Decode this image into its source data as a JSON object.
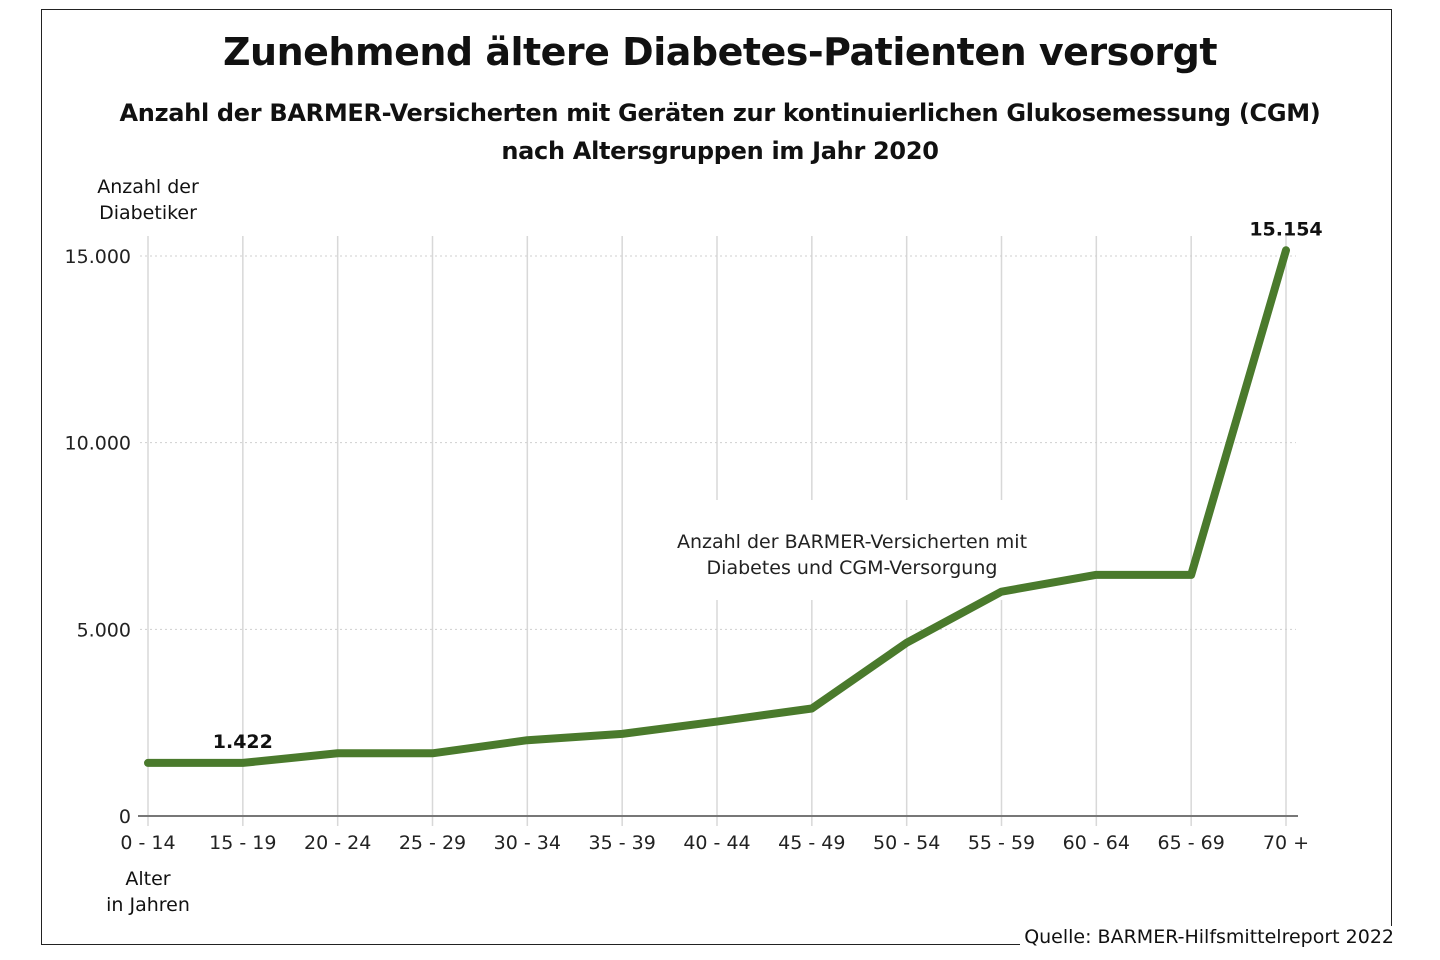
{
  "chart_data": {
    "type": "line",
    "title": "Zunehmend ältere Diabetes-Patienten versorgt",
    "subtitle_lines": [
      "Anzahl der BARMER-Versicherten mit Geräten zur kontinuierlichen Glukosemessung (CGM)",
      "nach Altersgruppen im Jahr 2020"
    ],
    "ylabel_lines": [
      "Anzahl der",
      "Diabetiker"
    ],
    "xlabel_lines": [
      "Alter",
      "in Jahren"
    ],
    "categories": [
      "0 - 14",
      "15 - 19",
      "20 - 24",
      "25 - 29",
      "30 - 34",
      "35 - 39",
      "40 - 44",
      "45 - 49",
      "50 - 54",
      "55 - 59",
      "60 - 64",
      "65 - 69",
      "70 +"
    ],
    "series": [
      {
        "name": "Anzahl der BARMER-Versicherten mit Diabetes und CGM-Versorgung",
        "values": [
          1422,
          1422,
          1680,
          1680,
          2030,
          2200,
          2530,
          2880,
          4640,
          6010,
          6460,
          6460,
          15154
        ],
        "color": "#4a7a2c"
      }
    ],
    "series_label_lines": [
      "Anzahl der BARMER-Versicherten mit",
      "Diabetes und CGM-Versorgung"
    ],
    "ylim": [
      0,
      15000
    ],
    "yticks": [
      0,
      5000,
      10000,
      15000
    ],
    "ytick_labels": [
      "0",
      "5.000",
      "10.000",
      "15.000"
    ],
    "data_labels": [
      {
        "index": 1,
        "text": "1.422"
      },
      {
        "index": 12,
        "text": "15.154"
      }
    ],
    "grid": true,
    "source": "Quelle: BARMER-Hilfsmittelreport 2022"
  }
}
